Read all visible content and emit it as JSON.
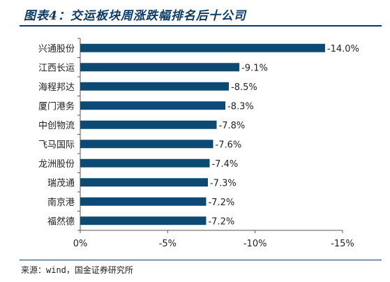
{
  "title": "图表4：交运板块周涨跌幅排名后十公司",
  "source": "来源：wind，国金证券研究所",
  "colors": {
    "bar": "#0c4a74",
    "title": "#0c3a66",
    "axis": "#555555"
  },
  "chart_data": {
    "type": "bar",
    "orientation": "horizontal",
    "title": "",
    "xlabel": "",
    "ylabel": "",
    "categories": [
      "兴通股份",
      "江西长运",
      "海程邦达",
      "厦门港务",
      "中创物流",
      "飞马国际",
      "龙洲股份",
      "瑞茂通",
      "南京港",
      "福然德"
    ],
    "values": [
      -14.0,
      -9.1,
      -8.5,
      -8.3,
      -7.8,
      -7.6,
      -7.4,
      -7.3,
      -7.2,
      -7.2
    ],
    "data_labels": [
      "-14.0%",
      "-9.1%",
      "-8.5%",
      "-8.3%",
      "-7.8%",
      "-7.6%",
      "-7.4%",
      "-7.3%",
      "-7.2%",
      "-7.2%"
    ],
    "xlim": [
      0,
      -15
    ],
    "ticks": [
      0,
      -5,
      -10,
      -15
    ],
    "tick_labels": [
      "0%",
      "-5%",
      "-10%",
      "-15%"
    ],
    "grid": false,
    "legend": "none"
  }
}
